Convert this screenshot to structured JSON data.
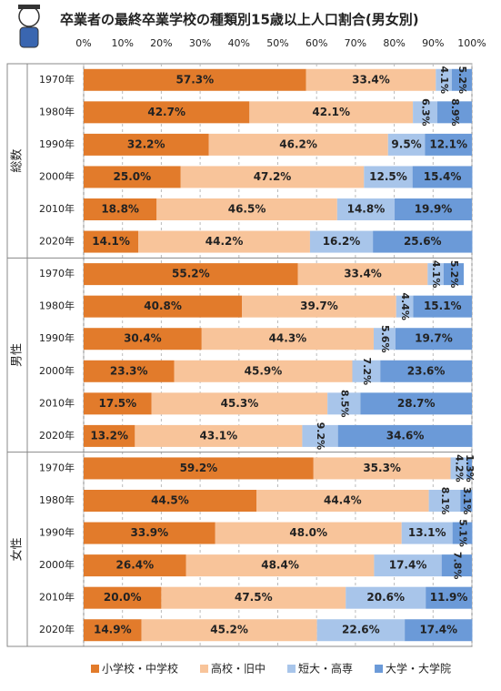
{
  "chart_data": {
    "type": "bar",
    "orientation": "horizontal",
    "stacked": true,
    "title": "卒業者の最終卒業学校の種類別15歳以上人口割合(男女別)",
    "group_labels": [
      "総数",
      "男性",
      "女性"
    ],
    "categories": [
      "1970年",
      "1980年",
      "1990年",
      "2000年",
      "2010年",
      "2020年",
      "1970年",
      "1980年",
      "1990年",
      "2000年",
      "2010年",
      "2020年",
      "1970年",
      "1980年",
      "1990年",
      "2000年",
      "2010年",
      "2020年"
    ],
    "xlim": [
      0,
      100
    ],
    "xticks": [
      {
        "value": 0,
        "label": "0%"
      },
      {
        "value": 10,
        "label": "10%"
      },
      {
        "value": 20,
        "label": "20%"
      },
      {
        "value": 30,
        "label": "30%"
      },
      {
        "value": 40,
        "label": "40%"
      },
      {
        "value": 50,
        "label": "50%"
      },
      {
        "value": 60,
        "label": "60%"
      },
      {
        "value": 70,
        "label": "70%"
      },
      {
        "value": 80,
        "label": "80%"
      },
      {
        "value": 90,
        "label": "90%"
      },
      {
        "value": 100,
        "label": "100%"
      }
    ],
    "grid": true,
    "legend": "bottom",
    "series": [
      {
        "name": "小学校・中学校",
        "color": "#e27b2b",
        "values": [
          57.3,
          42.7,
          32.2,
          25.0,
          18.8,
          14.1,
          55.2,
          40.8,
          30.4,
          23.3,
          17.5,
          13.2,
          59.2,
          44.5,
          33.9,
          26.4,
          20.0,
          14.9
        ],
        "value_labels": [
          "57.3%",
          "42.7%",
          "32.2%",
          "25.0%",
          "18.8%",
          "14.1%",
          "55.2%",
          "40.8%",
          "30.4%",
          "23.3%",
          "17.5%",
          "13.2%",
          "59.2%",
          "44.5%",
          "33.9%",
          "26.4%",
          "20.0%",
          "14.9%"
        ]
      },
      {
        "name": "高校・旧中",
        "color": "#f8c49a",
        "values": [
          33.4,
          42.1,
          46.2,
          47.2,
          46.5,
          44.2,
          33.4,
          39.7,
          44.3,
          45.9,
          45.3,
          43.1,
          35.3,
          44.4,
          48.0,
          48.4,
          47.5,
          45.2
        ],
        "value_labels": [
          "33.4%",
          "42.1%",
          "46.2%",
          "47.2%",
          "46.5%",
          "44.2%",
          "33.4%",
          "39.7%",
          "44.3%",
          "45.9%",
          "45.3%",
          "43.1%",
          "35.3%",
          "44.4%",
          "48.0%",
          "48.4%",
          "47.5%",
          "45.2%"
        ]
      },
      {
        "name": "短大・高専",
        "color": "#a8c5ea",
        "values": [
          4.1,
          6.3,
          9.5,
          12.5,
          14.8,
          16.2,
          4.1,
          4.4,
          5.6,
          7.2,
          8.5,
          9.2,
          4.2,
          8.1,
          13.1,
          17.4,
          20.6,
          22.6
        ],
        "value_labels": [
          "4.1%",
          "6.3%",
          "9.5%",
          "12.5%",
          "14.8%",
          "16.2%",
          "4.1%",
          "4.4%",
          "5.6%",
          "7.2%",
          "8.5%",
          "9.2%",
          "4.2%",
          "8.1%",
          "13.1%",
          "17.4%",
          "20.6%",
          "22.6%"
        ]
      },
      {
        "name": "大学・大学院",
        "color": "#6b9ad8",
        "values": [
          5.2,
          8.9,
          12.1,
          15.4,
          19.9,
          25.6,
          5.2,
          15.1,
          19.7,
          23.6,
          28.7,
          34.6,
          1.3,
          3.1,
          5.1,
          7.8,
          11.9,
          17.4
        ],
        "value_labels": [
          "5.2%",
          "8.9%",
          "12.1%",
          "15.4%",
          "19.9%",
          "25.6%",
          "5.2%",
          "15.1%",
          "19.7%",
          "23.6%",
          "28.7%",
          "34.6%",
          "1.3%",
          "3.1%",
          "5.1%",
          "7.8%",
          "11.9%",
          "17.4%"
        ]
      }
    ]
  }
}
